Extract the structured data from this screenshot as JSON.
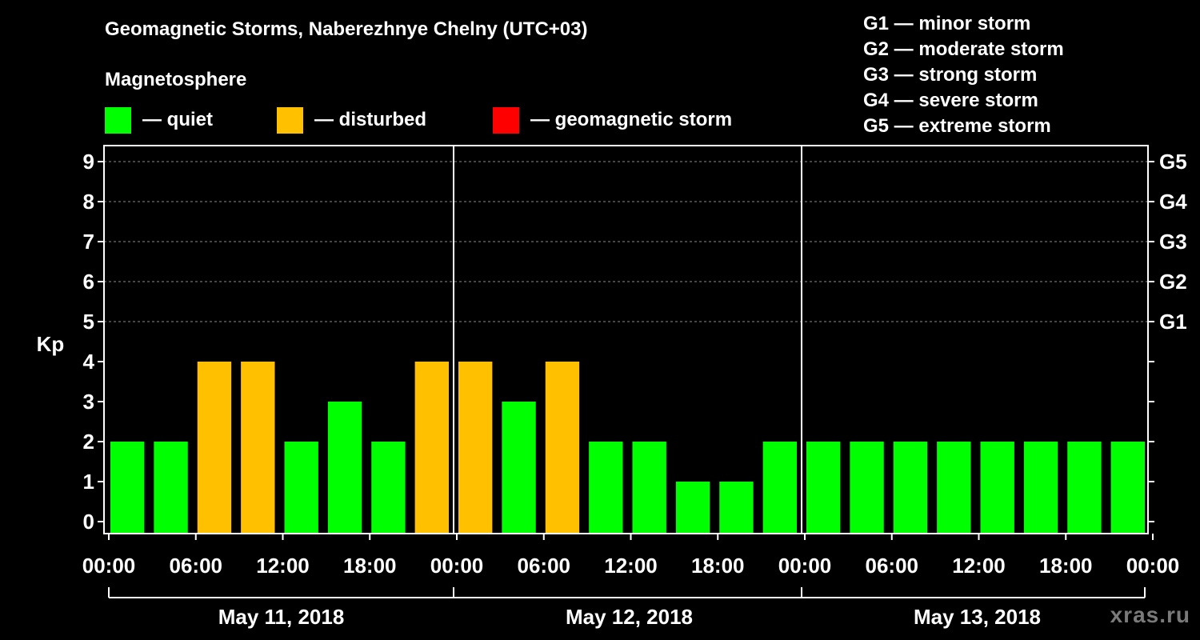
{
  "header": {
    "title": "Geomagnetic Storms, Naberezhnye Chelny (UTC+03)",
    "magnetosphere_label": "Magnetosphere"
  },
  "legend": [
    {
      "color": "#00ff00",
      "label": "— quiet"
    },
    {
      "color": "#ffc000",
      "label": "— disturbed"
    },
    {
      "color": "#ff0000",
      "label": "— geomagnetic storm"
    }
  ],
  "storm_scale": [
    "G1 — minor storm",
    "G2 — moderate storm",
    "G3 — strong storm",
    "G4 — severe storm",
    "G5 — extreme storm"
  ],
  "watermark": "xras.ru",
  "chart_data": {
    "type": "bar",
    "title": "Geomagnetic Storms, Naberezhnye Chelny (UTC+03)",
    "ylabel": "Kp",
    "xlabel": "",
    "ylim": [
      0,
      9
    ],
    "yticks": [
      "0",
      "1",
      "2",
      "3",
      "4",
      "5",
      "6",
      "7",
      "8",
      "9"
    ],
    "right_axis_ticks": [
      {
        "value": 5,
        "label": "G1"
      },
      {
        "value": 6,
        "label": "G2"
      },
      {
        "value": 7,
        "label": "G3"
      },
      {
        "value": 8,
        "label": "G4"
      },
      {
        "value": 9,
        "label": "G5"
      }
    ],
    "x_tick_labels": [
      "00:00",
      "06:00",
      "12:00",
      "18:00",
      "00:00",
      "06:00",
      "12:00",
      "18:00",
      "00:00",
      "06:00",
      "12:00",
      "18:00",
      "00:00"
    ],
    "days": [
      "May 11, 2018",
      "May 12, 2018",
      "May 13, 2018"
    ],
    "bars_per_day": 8,
    "values": [
      2,
      2,
      4,
      4,
      2,
      3,
      2,
      4,
      4,
      3,
      4,
      2,
      2,
      1,
      1,
      2,
      2,
      2,
      2,
      2,
      2,
      2,
      2,
      2
    ],
    "levels": [
      "quiet",
      "quiet",
      "disturbed",
      "disturbed",
      "quiet",
      "quiet",
      "quiet",
      "disturbed",
      "disturbed",
      "quiet",
      "disturbed",
      "quiet",
      "quiet",
      "quiet",
      "quiet",
      "quiet",
      "quiet",
      "quiet",
      "quiet",
      "quiet",
      "quiet",
      "quiet",
      "quiet",
      "quiet"
    ],
    "colors": {
      "quiet": "#00ff00",
      "disturbed": "#ffc000",
      "storm": "#ff0000"
    },
    "grid": "dashed at Kp 5 to 9"
  }
}
